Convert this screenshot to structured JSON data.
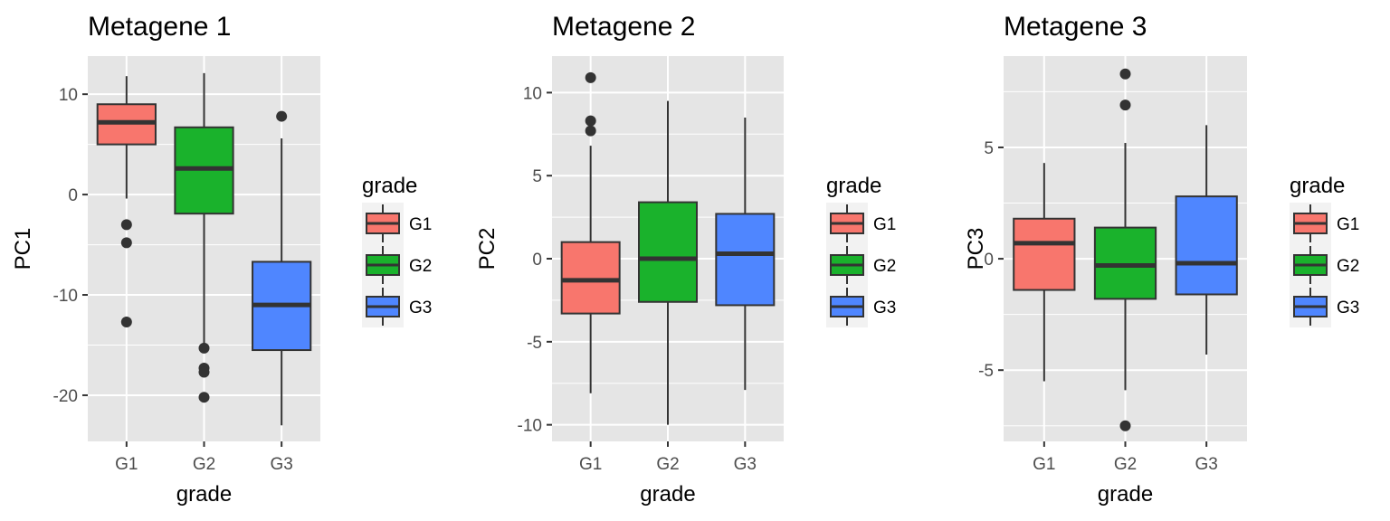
{
  "chart_data": [
    {
      "type": "boxplot",
      "title": "Metagene 1",
      "xlabel": "grade",
      "ylabel": "PC1",
      "ylim": [
        -24.6,
        13.8
      ],
      "yticks": [
        -20,
        -10,
        0,
        10
      ],
      "ytick_labels": [
        "-20",
        "-10",
        "0",
        "10"
      ],
      "categories": [
        "G1",
        "G2",
        "G3"
      ],
      "boxes": [
        {
          "category": "G1",
          "whisker_low": -0.4,
          "q1": 5.0,
          "median": 7.2,
          "q3": 9.0,
          "whisker_high": 11.8,
          "outliers": [
            -3.0,
            -4.8,
            -12.7
          ]
        },
        {
          "category": "G2",
          "whisker_low": -15.2,
          "q1": -1.9,
          "median": 2.6,
          "q3": 6.7,
          "whisker_high": 12.1,
          "outliers": [
            -15.3,
            -17.3,
            -17.7,
            -20.2
          ]
        },
        {
          "category": "G3",
          "whisker_low": -23.0,
          "q1": -15.5,
          "median": -11.0,
          "q3": -6.7,
          "whisker_high": 5.6,
          "outliers": [
            7.8
          ]
        }
      ],
      "legend": {
        "title": "grade",
        "position": "right",
        "entries": [
          "G1",
          "G2",
          "G3"
        ]
      }
    },
    {
      "type": "boxplot",
      "title": "Metagene 2",
      "xlabel": "grade",
      "ylabel": "PC2",
      "ylim": [
        -11.0,
        12.2
      ],
      "yticks": [
        -10,
        -5,
        0,
        5,
        10
      ],
      "ytick_labels": [
        "-10",
        "-5",
        "0",
        "5",
        "10"
      ],
      "categories": [
        "G1",
        "G2",
        "G3"
      ],
      "boxes": [
        {
          "category": "G1",
          "whisker_low": -8.1,
          "q1": -3.3,
          "median": -1.3,
          "q3": 1.0,
          "whisker_high": 6.8,
          "outliers": [
            7.7,
            8.3,
            10.9
          ]
        },
        {
          "category": "G2",
          "whisker_low": -10.0,
          "q1": -2.6,
          "median": 0.0,
          "q3": 3.4,
          "whisker_high": 9.5,
          "outliers": []
        },
        {
          "category": "G3",
          "whisker_low": -7.9,
          "q1": -2.8,
          "median": 0.3,
          "q3": 2.7,
          "whisker_high": 8.5,
          "outliers": []
        }
      ],
      "legend": {
        "title": "grade",
        "position": "right",
        "entries": [
          "G1",
          "G2",
          "G3"
        ]
      }
    },
    {
      "type": "boxplot",
      "title": "Metagene 3",
      "xlabel": "grade",
      "ylabel": "PC3",
      "ylim": [
        -8.2,
        9.1
      ],
      "yticks": [
        -5,
        0,
        5
      ],
      "ytick_labels": [
        "-5",
        "0",
        "5"
      ],
      "categories": [
        "G1",
        "G2",
        "G3"
      ],
      "boxes": [
        {
          "category": "G1",
          "whisker_low": -5.5,
          "q1": -1.4,
          "median": 0.7,
          "q3": 1.8,
          "whisker_high": 4.3,
          "outliers": []
        },
        {
          "category": "G2",
          "whisker_low": -5.9,
          "q1": -1.8,
          "median": -0.3,
          "q3": 1.4,
          "whisker_high": 5.2,
          "outliers": [
            6.9,
            8.3,
            -7.5
          ]
        },
        {
          "category": "G3",
          "whisker_low": -4.3,
          "q1": -1.6,
          "median": -0.2,
          "q3": 2.8,
          "whisker_high": 6.0,
          "outliers": []
        }
      ],
      "legend": {
        "title": "grade",
        "position": "right",
        "entries": [
          "G1",
          "G2",
          "G3"
        ]
      }
    }
  ],
  "colors": {
    "panel_bg": "#E5E5E5",
    "grid": "#FFFFFF",
    "box_outline": "#333333",
    "series": {
      "G1": "#F8766D",
      "G2": "#1AB22C",
      "G3": "#4F86FF"
    }
  }
}
